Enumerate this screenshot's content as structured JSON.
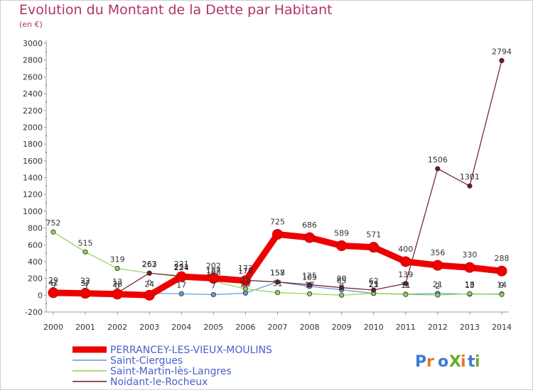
{
  "chart_data": {
    "type": "line",
    "title": "Evolution du Montant de la Dette par Habitant",
    "subtitle": "(en €)",
    "x": [
      "2000",
      "2001",
      "2002",
      "2003",
      "2004",
      "2005",
      "2006",
      "2007",
      "2008",
      "2009",
      "2010",
      "2011",
      "2012",
      "2013",
      "2014"
    ],
    "ylim": [
      -200,
      3000
    ],
    "yticks": [
      -200,
      0,
      200,
      400,
      600,
      800,
      1000,
      1200,
      1400,
      1600,
      1800,
      2000,
      2200,
      2400,
      2600,
      2800,
      3000
    ],
    "grid": false,
    "legend_position": "bottom-left",
    "series": [
      {
        "name": "PERRANCEY-LES-VIEUX-MOULINS",
        "color": "#ee0000",
        "values": [
          29,
          22,
          13,
          0,
          221,
          202,
          173,
          725,
          686,
          589,
          571,
          400,
          356,
          330,
          288
        ],
        "labels": [
          "29",
          "22",
          "13",
          "0",
          "221",
          "202",
          "173",
          "725",
          "686",
          "589",
          "571",
          "400",
          "356",
          "330",
          "288"
        ]
      },
      {
        "name": "Saint-Ciergues",
        "color": "#5b9bd5",
        "values": [
          9,
          3,
          0,
          24,
          17,
          7,
          25,
          158,
          105,
          65,
          21,
          11,
          21,
          13,
          14
        ],
        "labels": [
          "9",
          "3",
          "0",
          "24",
          "17",
          "7",
          "25",
          "158",
          "105",
          "65",
          "21",
          "11",
          "21",
          "13",
          "14"
        ]
      },
      {
        "name": "Saint-Martin-lès-Langres",
        "color": "#8fd14f",
        "values": [
          752,
          515,
          319,
          262,
          231,
          168,
          75,
          31,
          17,
          0,
          23,
          9,
          2,
          18,
          9
        ],
        "labels": [
          "752",
          "515",
          "319",
          "262",
          "231",
          "168",
          "75",
          "31",
          "17",
          "0",
          "23",
          "9",
          "2",
          "18",
          "9"
        ]
      },
      {
        "name": "Noidant-le-Rocheux",
        "color": "#6e1a26",
        "values": [
          41,
          37,
          28,
          263,
          224,
          187,
          178,
          157,
          125,
          90,
          62,
          139,
          1506,
          1301,
          2794
        ],
        "labels": [
          "41",
          "37",
          "28",
          "263",
          "224",
          "187",
          "178",
          "157",
          "125",
          "90",
          "62",
          "139",
          "1506",
          "1301",
          "2794"
        ]
      }
    ],
    "brand": "ProXiti"
  }
}
